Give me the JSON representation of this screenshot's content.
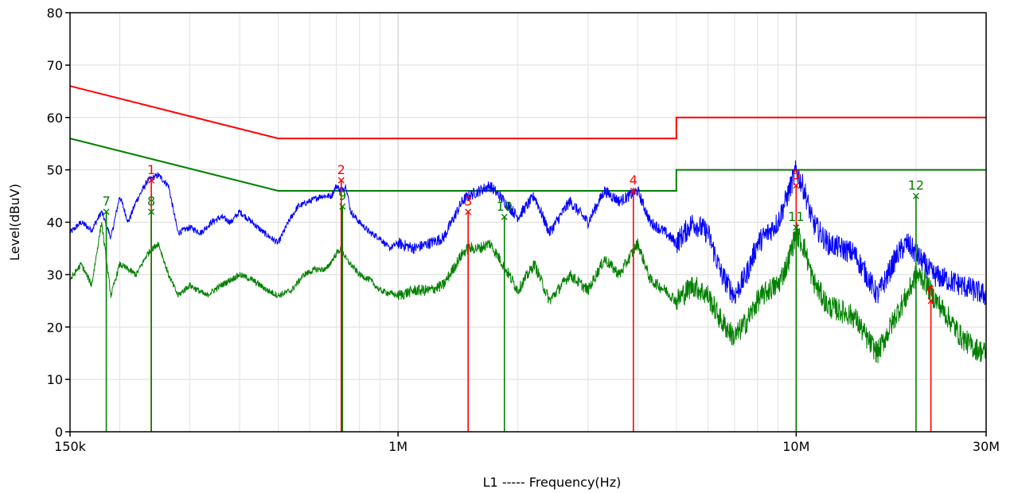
{
  "chart_data": {
    "type": "line",
    "xlabel": "L1 ----- Frequency(Hz)",
    "ylabel": "Level(dBuV)",
    "x_scale": "log",
    "xlim": [
      150000,
      30000000
    ],
    "ylim": [
      0,
      80
    ],
    "grid": true,
    "x_ticks": [
      {
        "value": 150000,
        "label": "150k"
      },
      {
        "value": 1000000,
        "label": "1M"
      },
      {
        "value": 10000000,
        "label": "10M"
      },
      {
        "value": 30000000,
        "label": "30M"
      }
    ],
    "y_ticks": [
      {
        "value": 0,
        "label": "0"
      },
      {
        "value": 10,
        "label": "10"
      },
      {
        "value": 20,
        "label": "20"
      },
      {
        "value": 30,
        "label": "30"
      },
      {
        "value": 40,
        "label": "40"
      },
      {
        "value": 50,
        "label": "50"
      },
      {
        "value": 60,
        "label": "60"
      },
      {
        "value": 70,
        "label": "70"
      },
      {
        "value": 80,
        "label": "80"
      }
    ],
    "limit_lines": [
      {
        "color": "#ff0000",
        "points": [
          [
            150000,
            66
          ],
          [
            500000,
            56
          ],
          [
            5000000,
            56
          ],
          [
            5000000,
            60
          ],
          [
            30000000,
            60
          ]
        ]
      },
      {
        "color": "#008000",
        "points": [
          [
            150000,
            56
          ],
          [
            500000,
            46
          ],
          [
            5000000,
            46
          ],
          [
            5000000,
            50
          ],
          [
            30000000,
            50
          ]
        ]
      }
    ],
    "series": [
      {
        "color": "#0000ff",
        "points": [
          [
            150000,
            38
          ],
          [
            160000,
            40
          ],
          [
            170000,
            38.5
          ],
          [
            180000,
            42
          ],
          [
            190000,
            37
          ],
          [
            200000,
            45
          ],
          [
            210000,
            40
          ],
          [
            220000,
            44
          ],
          [
            235000,
            48
          ],
          [
            250000,
            49
          ],
          [
            265000,
            47
          ],
          [
            280000,
            38
          ],
          [
            300000,
            39
          ],
          [
            320000,
            38
          ],
          [
            340000,
            40
          ],
          [
            360000,
            41
          ],
          [
            380000,
            40
          ],
          [
            400000,
            42
          ],
          [
            430000,
            40
          ],
          [
            460000,
            38
          ],
          [
            500000,
            36
          ],
          [
            530000,
            40
          ],
          [
            560000,
            43
          ],
          [
            600000,
            44
          ],
          [
            640000,
            45
          ],
          [
            680000,
            45
          ],
          [
            700000,
            47
          ],
          [
            720000,
            46
          ],
          [
            740000,
            47
          ],
          [
            760000,
            42
          ],
          [
            800000,
            40
          ],
          [
            850000,
            38
          ],
          [
            900000,
            37
          ],
          [
            950000,
            35
          ],
          [
            1000000,
            36
          ],
          [
            1100000,
            35
          ],
          [
            1200000,
            36
          ],
          [
            1300000,
            37
          ],
          [
            1450000,
            44
          ],
          [
            1500000,
            45
          ],
          [
            1600000,
            46
          ],
          [
            1700000,
            47
          ],
          [
            1800000,
            45
          ],
          [
            2000000,
            41
          ],
          [
            2200000,
            45
          ],
          [
            2400000,
            38
          ],
          [
            2700000,
            44
          ],
          [
            3000000,
            40
          ],
          [
            3300000,
            46
          ],
          [
            3600000,
            44
          ],
          [
            4000000,
            46
          ],
          [
            4300000,
            40
          ],
          [
            4700000,
            38
          ],
          [
            5000000,
            36
          ],
          [
            5500000,
            40
          ],
          [
            6000000,
            38
          ],
          [
            6500000,
            30
          ],
          [
            7000000,
            26
          ],
          [
            7500000,
            30
          ],
          [
            8000000,
            36
          ],
          [
            8500000,
            38
          ],
          [
            9000000,
            40
          ],
          [
            9500000,
            45
          ],
          [
            10000000,
            50
          ],
          [
            10500000,
            46
          ],
          [
            11000000,
            40
          ],
          [
            12000000,
            36
          ],
          [
            13000000,
            35
          ],
          [
            14000000,
            34
          ],
          [
            15000000,
            30
          ],
          [
            16000000,
            26
          ],
          [
            17000000,
            30
          ],
          [
            18000000,
            34
          ],
          [
            19000000,
            36
          ],
          [
            20000000,
            34
          ],
          [
            21000000,
            32
          ],
          [
            22000000,
            30
          ],
          [
            24000000,
            29
          ],
          [
            26000000,
            28
          ],
          [
            28000000,
            27
          ],
          [
            30000000,
            26
          ]
        ]
      },
      {
        "color": "#008000",
        "points": [
          [
            150000,
            29
          ],
          [
            160000,
            32
          ],
          [
            170000,
            28
          ],
          [
            180000,
            40
          ],
          [
            190000,
            26
          ],
          [
            200000,
            32
          ],
          [
            220000,
            30
          ],
          [
            235000,
            34
          ],
          [
            250000,
            36
          ],
          [
            265000,
            30
          ],
          [
            280000,
            26
          ],
          [
            300000,
            28
          ],
          [
            330000,
            26
          ],
          [
            360000,
            28
          ],
          [
            400000,
            30
          ],
          [
            430000,
            29
          ],
          [
            470000,
            27
          ],
          [
            500000,
            26
          ],
          [
            540000,
            27
          ],
          [
            580000,
            30
          ],
          [
            620000,
            31
          ],
          [
            660000,
            31
          ],
          [
            700000,
            34
          ],
          [
            720000,
            35
          ],
          [
            740000,
            33
          ],
          [
            800000,
            30
          ],
          [
            850000,
            29
          ],
          [
            900000,
            27
          ],
          [
            1000000,
            26
          ],
          [
            1100000,
            27
          ],
          [
            1200000,
            27
          ],
          [
            1300000,
            28
          ],
          [
            1450000,
            34
          ],
          [
            1500000,
            35
          ],
          [
            1600000,
            35
          ],
          [
            1700000,
            36
          ],
          [
            1800000,
            33
          ],
          [
            2000000,
            27
          ],
          [
            2200000,
            32
          ],
          [
            2400000,
            25
          ],
          [
            2700000,
            30
          ],
          [
            3000000,
            27
          ],
          [
            3300000,
            33
          ],
          [
            3600000,
            30
          ],
          [
            4000000,
            36
          ],
          [
            4300000,
            29
          ],
          [
            4700000,
            27
          ],
          [
            5000000,
            25
          ],
          [
            5500000,
            28
          ],
          [
            6000000,
            26
          ],
          [
            6500000,
            21
          ],
          [
            7000000,
            18
          ],
          [
            7500000,
            21
          ],
          [
            8000000,
            25
          ],
          [
            8500000,
            27
          ],
          [
            9000000,
            28
          ],
          [
            9500000,
            32
          ],
          [
            10000000,
            38
          ],
          [
            10500000,
            35
          ],
          [
            11000000,
            29
          ],
          [
            12000000,
            24
          ],
          [
            13000000,
            23
          ],
          [
            14000000,
            22
          ],
          [
            15000000,
            18
          ],
          [
            16000000,
            15
          ],
          [
            17000000,
            19
          ],
          [
            18000000,
            23
          ],
          [
            19000000,
            26
          ],
          [
            20000000,
            30
          ],
          [
            21000000,
            29
          ],
          [
            22000000,
            26
          ],
          [
            24000000,
            22
          ],
          [
            26000000,
            18
          ],
          [
            28000000,
            16
          ],
          [
            30000000,
            15
          ]
        ]
      }
    ],
    "markers": [
      {
        "label": "1",
        "color": "#ff0000",
        "freq": 240000,
        "level": 48
      },
      {
        "label": "2",
        "color": "#ff0000",
        "freq": 720000,
        "level": 48
      },
      {
        "label": "3",
        "color": "#ff0000",
        "freq": 1500000,
        "level": 42
      },
      {
        "label": "4",
        "color": "#ff0000",
        "freq": 3900000,
        "level": 46
      },
      {
        "label": "5",
        "color": "#ff0000",
        "freq": 10000000,
        "level": 47
      },
      {
        "label": "6",
        "color": "#ff0000",
        "freq": 21800000,
        "level": 25
      },
      {
        "label": "7",
        "color": "#008000",
        "freq": 185000,
        "level": 42
      },
      {
        "label": "8",
        "color": "#008000",
        "freq": 240000,
        "level": 42
      },
      {
        "label": "9",
        "color": "#008000",
        "freq": 725000,
        "level": 43
      },
      {
        "label": "10",
        "color": "#008000",
        "freq": 1850000,
        "level": 41
      },
      {
        "label": "11",
        "color": "#008000",
        "freq": 10000000,
        "level": 39
      },
      {
        "label": "12",
        "color": "#008000",
        "freq": 20000000,
        "level": 45
      }
    ]
  }
}
